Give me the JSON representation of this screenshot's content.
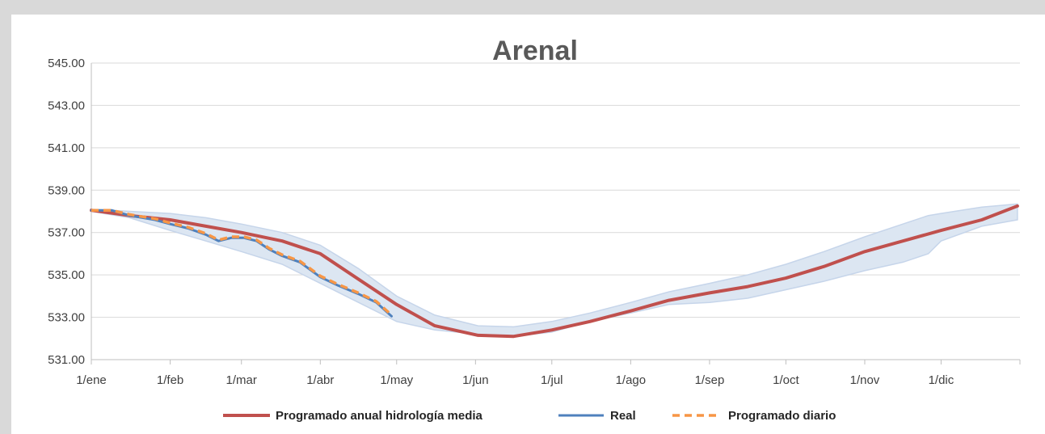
{
  "chart_data": {
    "type": "line",
    "title": "Arenal",
    "xlabel": "",
    "ylabel": "",
    "ylim": [
      531,
      545
    ],
    "y_ticks": [
      "531.00",
      "533.00",
      "535.00",
      "537.00",
      "539.00",
      "541.00",
      "543.00",
      "545.00"
    ],
    "x_ticks": [
      "1/ene",
      "1/feb",
      "1/mar",
      "1/abr",
      "1/may",
      "1/jun",
      "1/jul",
      "1/ago",
      "1/sep",
      "1/oct",
      "1/nov",
      "1/dic"
    ],
    "grid": "horizontal",
    "legend_position": "bottom",
    "colors": {
      "programado_anual": "#c0504d",
      "real": "#4f81bd",
      "programado_diario": "#f79646",
      "band_fill": "#dce6f2",
      "band_stroke": "#c6d5ea",
      "grid": "#d9d9d9",
      "axis": "#bfbfbf"
    },
    "band": {
      "name": "",
      "x": [
        0,
        15,
        31,
        45,
        59,
        75,
        90,
        105,
        120,
        135,
        152,
        166,
        181,
        196,
        212,
        227,
        243,
        258,
        273,
        288,
        304,
        319,
        329,
        334,
        350,
        364
      ],
      "upper": [
        538.1,
        538.0,
        537.9,
        537.7,
        537.4,
        537.0,
        536.4,
        535.3,
        534.0,
        533.1,
        532.6,
        532.55,
        532.8,
        533.2,
        533.7,
        534.2,
        534.6,
        535.0,
        535.5,
        536.1,
        536.8,
        537.4,
        537.8,
        537.9,
        538.2,
        538.35
      ],
      "lower": [
        538.0,
        537.7,
        537.1,
        536.6,
        536.1,
        535.5,
        534.6,
        533.7,
        532.8,
        532.4,
        532.2,
        532.1,
        532.3,
        532.8,
        533.2,
        533.6,
        533.7,
        533.9,
        534.3,
        534.7,
        535.2,
        535.6,
        536.0,
        536.6,
        537.3,
        537.6
      ]
    },
    "series": [
      {
        "name": "Programado anual hidrología media",
        "x": [
          0,
          15,
          31,
          45,
          59,
          75,
          90,
          105,
          120,
          135,
          152,
          166,
          181,
          196,
          212,
          227,
          243,
          258,
          273,
          288,
          304,
          319,
          334,
          350,
          364
        ],
        "values": [
          538.05,
          537.8,
          537.6,
          537.3,
          537.0,
          536.6,
          536.0,
          534.8,
          533.6,
          532.6,
          532.15,
          532.1,
          532.4,
          532.8,
          533.3,
          533.8,
          534.15,
          534.45,
          534.85,
          535.4,
          536.1,
          536.6,
          537.1,
          537.6,
          538.25
        ]
      },
      {
        "name": "Real",
        "x": [
          0,
          8,
          15,
          25,
          31,
          38,
          45,
          50,
          55,
          60,
          65,
          70,
          75,
          82,
          90,
          97,
          105,
          112,
          118
        ],
        "values": [
          538.05,
          538.05,
          537.8,
          537.6,
          537.4,
          537.2,
          536.9,
          536.6,
          536.75,
          536.75,
          536.6,
          536.2,
          535.9,
          535.6,
          534.9,
          534.5,
          534.1,
          533.7,
          533.05
        ]
      },
      {
        "name": "Programado diario",
        "x": [
          0,
          8,
          15,
          25,
          31,
          38,
          45,
          50,
          55,
          60,
          65,
          70,
          75,
          82,
          90,
          97,
          105,
          112,
          118
        ],
        "values": [
          538.05,
          538.05,
          537.85,
          537.65,
          537.45,
          537.25,
          536.95,
          536.65,
          536.8,
          536.8,
          536.65,
          536.25,
          535.95,
          535.65,
          534.95,
          534.55,
          534.15,
          533.75,
          533.1
        ]
      }
    ]
  }
}
